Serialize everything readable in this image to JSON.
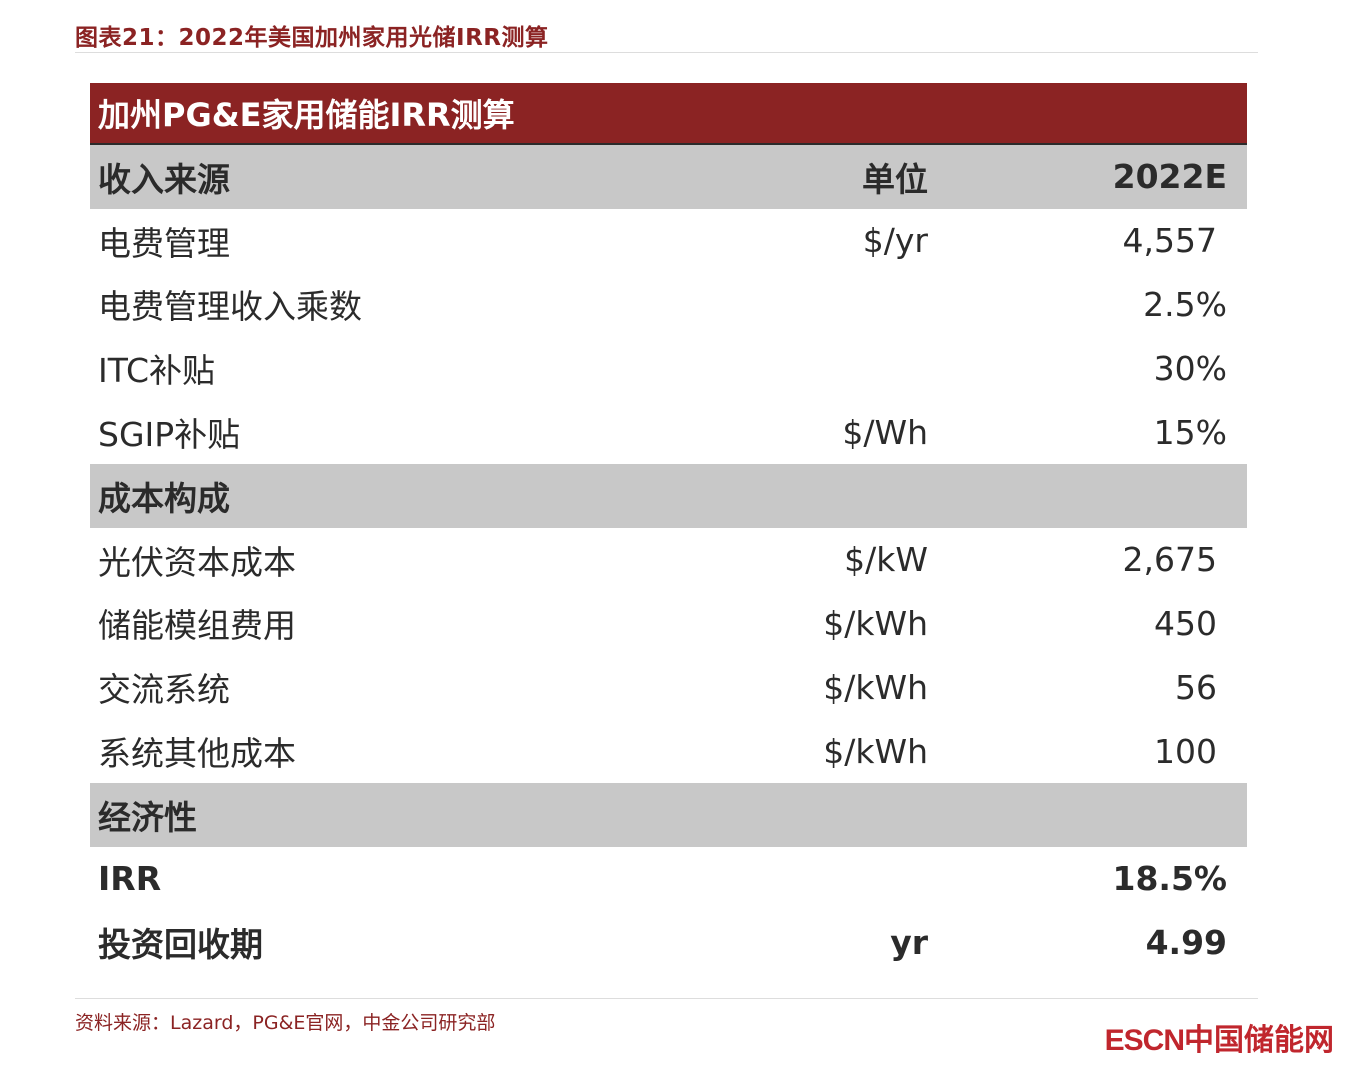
{
  "figure_title": "图表21：2022年美国加州家用光储IRR测算",
  "table": {
    "banner": "加州PG&E家用储能IRR测算",
    "rows": [
      {
        "type": "section",
        "label": "收入来源",
        "unit": "单位",
        "value": "2022E"
      },
      {
        "type": "data",
        "label": "电费管理",
        "unit": "$/yr",
        "value": "4,557",
        "indent": true
      },
      {
        "type": "data",
        "label": "电费管理收入乘数",
        "unit": "",
        "value": "2.5%"
      },
      {
        "type": "data",
        "label": "ITC补贴",
        "unit": "",
        "value": "30%"
      },
      {
        "type": "data",
        "label": "SGIP补贴",
        "unit": "$/Wh",
        "value": "15%"
      },
      {
        "type": "section",
        "label": "成本构成",
        "unit": "",
        "value": ""
      },
      {
        "type": "data",
        "label": "光伏资本成本",
        "unit": "$/kW",
        "value": "2,675",
        "indent": true
      },
      {
        "type": "data",
        "label": "储能模组费用",
        "unit": "$/kWh",
        "value": "450",
        "indent": true
      },
      {
        "type": "data",
        "label": "交流系统",
        "unit": "$/kWh",
        "value": "56",
        "indent": true
      },
      {
        "type": "data",
        "label": "系统其他成本",
        "unit": "$/kWh",
        "value": "100",
        "indent": true
      },
      {
        "type": "section",
        "label": "经济性",
        "unit": "",
        "value": ""
      },
      {
        "type": "bold",
        "label": "IRR",
        "unit": "",
        "value": "18.5%"
      },
      {
        "type": "bold",
        "label": "投资回收期",
        "unit": "yr",
        "value": "4.99"
      }
    ]
  },
  "source": "资料来源：Lazard，PG&E官网，中金公司研究部",
  "watermark": {
    "latin": "ESCN",
    "cjk": "中国储能网"
  },
  "colors": {
    "accent": "#8b2323",
    "section_bg": "#c8c8c8",
    "watermark": "#c0262d"
  }
}
